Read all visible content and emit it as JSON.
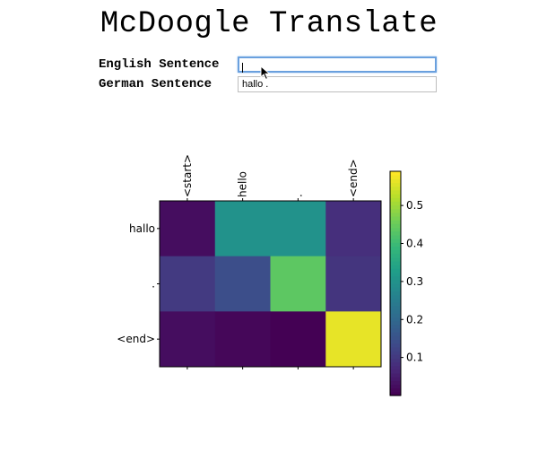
{
  "app": {
    "title": "McDoogle Translate"
  },
  "form": {
    "english_label": "English Sentence",
    "english_value": "",
    "german_label": "German Sentence",
    "german_value": "hallo ."
  },
  "chart_data": {
    "type": "heatmap",
    "x_tick_labels": [
      "<start>",
      "hello",
      ".",
      "<end>"
    ],
    "y_tick_labels": [
      "hallo",
      ".",
      "<end>"
    ],
    "values": [
      [
        0.02,
        0.3,
        0.3,
        0.08
      ],
      [
        0.1,
        0.14,
        0.44,
        0.09
      ],
      [
        0.02,
        0.01,
        0.0,
        0.57
      ]
    ],
    "colormap": "viridis",
    "colorbar_ticks": [
      0.1,
      0.2,
      0.3,
      0.4,
      0.5
    ],
    "colorbar_range": [
      0.0,
      0.59
    ],
    "title": "",
    "xlabel": "",
    "ylabel": ""
  }
}
